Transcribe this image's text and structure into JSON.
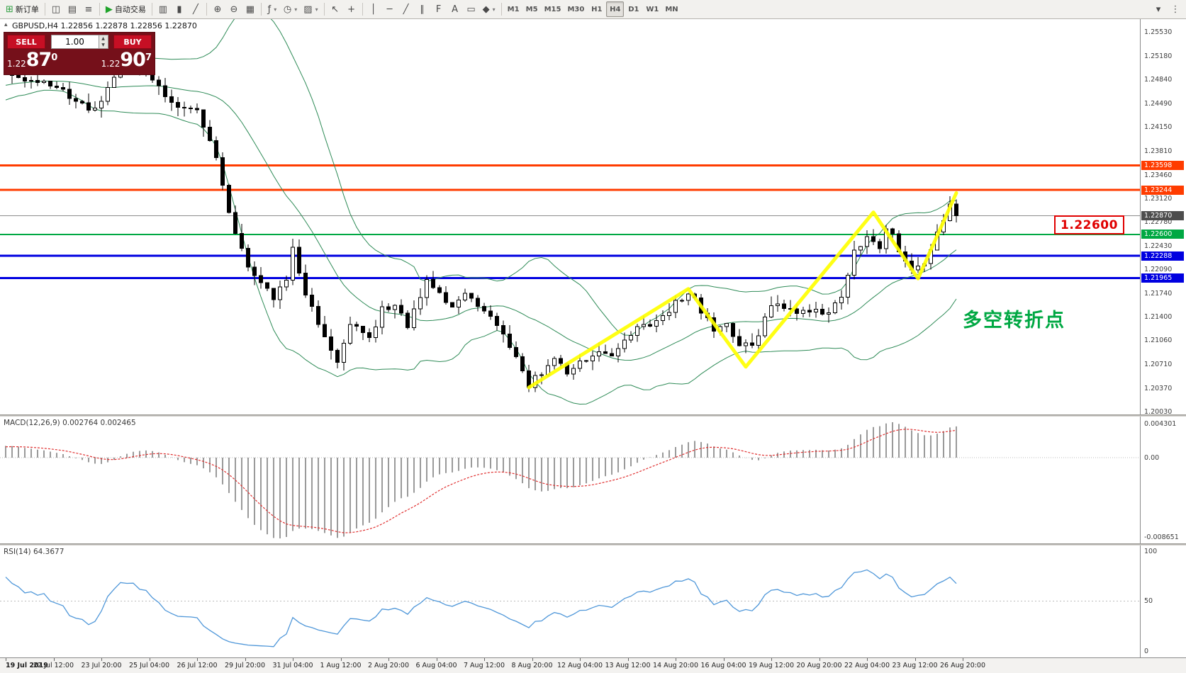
{
  "colors": {
    "line_orange": "#ff3c00",
    "line_green": "#00a843",
    "line_blue": "#0000e0",
    "current_price_line": "#8c8c8c",
    "current_price_bg": "#4d4d4d",
    "bollinger": "#2e8b57",
    "candle_up": "#ffffff",
    "candle_down": "#000000",
    "zigzag_yellow": "#ffff00",
    "macd_hist": "#9a9a9a",
    "macd_signal": "#e03030",
    "rsi_line": "#4f97d9",
    "annotation_green": "#00a843",
    "callout_red": "#e00000"
  },
  "toolbar": {
    "groups": [
      {
        "items": [
          {
            "name": "new-order-button",
            "glyph": "⊞",
            "glyph_color": "#2f9e41",
            "label": "新订单"
          }
        ]
      },
      {
        "items": [
          {
            "name": "charts-button",
            "glyph": "◫"
          },
          {
            "name": "profiles-button",
            "glyph": "▤"
          },
          {
            "name": "market-watch-button",
            "glyph": "≡"
          }
        ]
      },
      {
        "items": [
          {
            "name": "autotrading-button",
            "glyph": "▶",
            "glyph_color": "#1fa32a",
            "label": "自动交易"
          }
        ]
      },
      {
        "items": [
          {
            "name": "bar-chart-button",
            "glyph": "▥"
          },
          {
            "name": "candlestick-chart-button",
            "glyph": "▮"
          },
          {
            "name": "line-chart-button",
            "glyph": "╱"
          }
        ]
      },
      {
        "items": [
          {
            "name": "zoom-in-button",
            "glyph": "⊕"
          },
          {
            "name": "zoom-out-button",
            "glyph": "⊖"
          },
          {
            "name": "grid-button",
            "glyph": "▦"
          }
        ]
      },
      {
        "items": [
          {
            "name": "indicators-button",
            "glyph": "ƒ",
            "dropdown": true
          },
          {
            "name": "periods-button",
            "glyph": "◷",
            "dropdown": true
          },
          {
            "name": "templates-button",
            "glyph": "▨",
            "dropdown": true
          }
        ]
      },
      {
        "items": [
          {
            "name": "cursor-button",
            "glyph": "↖"
          },
          {
            "name": "crosshair-button",
            "glyph": "+"
          }
        ]
      },
      {
        "items": [
          {
            "name": "vertical-line-button",
            "glyph": "│"
          },
          {
            "name": "horizontal-line-button",
            "glyph": "─"
          },
          {
            "name": "trendline-button",
            "glyph": "╱"
          },
          {
            "name": "channel-button",
            "glyph": "∥"
          },
          {
            "name": "fibonacci-button",
            "glyph": "F"
          },
          {
            "name": "text-button",
            "glyph": "A"
          },
          {
            "name": "arrow-label-button",
            "glyph": "▭"
          },
          {
            "name": "shapes-button",
            "glyph": "◆",
            "dropdown": true
          }
        ]
      }
    ],
    "timeframes": [
      "M1",
      "M5",
      "M15",
      "M30",
      "H1",
      "H4",
      "D1",
      "W1",
      "MN"
    ],
    "active_timeframe": "H4",
    "right_items": [
      {
        "name": "chart-list-button",
        "glyph": "▾"
      },
      {
        "name": "toolbar-overflow-handle",
        "glyph": "⋮"
      }
    ]
  },
  "chart": {
    "symbol_info": "GBPUSD,H4  1.22856 1.22878 1.22856 1.22870",
    "trade_panel": {
      "sell_label": "SELL",
      "buy_label": "BUY",
      "volume": "1.00",
      "sell_price_small": "1.22",
      "sell_price_big": "87",
      "sell_price_sup": "0",
      "buy_price_small": "1.22",
      "buy_price_big": "90",
      "buy_price_sup": "7"
    },
    "callout_price": "1.22600",
    "annotation_text": "多空转折点",
    "current_price_label": "1.22870"
  },
  "price_scale": {
    "ticks": [
      "1.25530",
      "1.25180",
      "1.24840",
      "1.24490",
      "1.24150",
      "1.23810",
      "1.23460",
      "1.23120",
      "1.22780",
      "1.22430",
      "1.22090",
      "1.21740",
      "1.21400",
      "1.21060",
      "1.20710",
      "1.20370",
      "1.20030"
    ],
    "marks": [
      {
        "text": "1.23598",
        "price": 1.23598,
        "bg": "#ff3c00"
      },
      {
        "text": "1.23244",
        "price": 1.23244,
        "bg": "#ff3c00"
      },
      {
        "text": "1.22870",
        "price": 1.2287,
        "bg": "#4d4d4d"
      },
      {
        "text": "1.22600",
        "price": 1.226,
        "bg": "#00a843"
      },
      {
        "text": "1.22288",
        "price": 1.22288,
        "bg": "#0000e0"
      },
      {
        "text": "1.21965",
        "price": 1.21965,
        "bg": "#0000e0"
      }
    ]
  },
  "macd_panel": {
    "label": "MACD(12,26,9) 0.002764 0.002465",
    "scale_labels": [
      "0.004301",
      "0.00",
      "-0.008651"
    ]
  },
  "rsi_panel": {
    "label": "RSI(14) 64.3677",
    "scale_labels": [
      "100",
      "50",
      "0"
    ]
  },
  "time_axis": [
    "19 Jul 2019",
    "22 Jul 12:00",
    "23 Jul 20:00",
    "25 Jul 04:00",
    "26 Jul 12:00",
    "29 Jul 20:00",
    "31 Jul 04:00",
    "1 Aug 12:00",
    "2 Aug 20:00",
    "6 Aug 04:00",
    "7 Aug 12:00",
    "8 Aug 20:00",
    "12 Aug 04:00",
    "13 Aug 12:00",
    "14 Aug 20:00",
    "16 Aug 04:00",
    "19 Aug 12:00",
    "20 Aug 20:00",
    "22 Aug 04:00",
    "23 Aug 12:00",
    "26 Aug 20:00"
  ],
  "chart_data": {
    "type": "candlestick",
    "symbol": "GBPUSD",
    "timeframe": "H4",
    "ohlc_current": {
      "open": 1.22856,
      "high": 1.22878,
      "low": 1.22856,
      "close": 1.2287
    },
    "bid": 1.2287,
    "ask": 1.229,
    "visible_price_range": [
      1.1998,
      1.2572
    ],
    "num_candles": 150,
    "last_close": 1.2287,
    "close_waypoints": [
      [
        0,
        1.2495
      ],
      [
        8,
        1.2472
      ],
      [
        14,
        1.244
      ],
      [
        18,
        1.2505
      ],
      [
        22,
        1.2495
      ],
      [
        26,
        1.245
      ],
      [
        30,
        1.2435
      ],
      [
        33,
        1.237
      ],
      [
        35,
        1.229
      ],
      [
        38,
        1.221
      ],
      [
        42,
        1.217
      ],
      [
        44,
        1.2195
      ],
      [
        45,
        1.2245
      ],
      [
        47,
        1.217
      ],
      [
        50,
        1.2115
      ],
      [
        52,
        1.2075
      ],
      [
        54,
        1.213
      ],
      [
        57,
        1.211
      ],
      [
        59,
        1.215
      ],
      [
        61,
        1.216
      ],
      [
        63,
        1.213
      ],
      [
        65,
        1.2168
      ],
      [
        66,
        1.2192
      ],
      [
        68,
        1.2172
      ],
      [
        70,
        1.2155
      ],
      [
        72,
        1.2172
      ],
      [
        74,
        1.216
      ],
      [
        76,
        1.2138
      ],
      [
        78,
        1.2118
      ],
      [
        80,
        1.2078
      ],
      [
        82,
        1.2042
      ],
      [
        84,
        1.2062
      ],
      [
        86,
        1.208
      ],
      [
        88,
        1.2058
      ],
      [
        90,
        1.2072
      ],
      [
        93,
        1.2088
      ],
      [
        95,
        1.2082
      ],
      [
        97,
        1.2102
      ],
      [
        99,
        1.2122
      ],
      [
        101,
        1.2132
      ],
      [
        104,
        1.2152
      ],
      [
        107,
        1.2177
      ],
      [
        109,
        1.215
      ],
      [
        111,
        1.2122
      ],
      [
        113,
        1.2132
      ],
      [
        115,
        1.2102
      ],
      [
        117,
        1.2094
      ],
      [
        119,
        1.2142
      ],
      [
        121,
        1.2162
      ],
      [
        123,
        1.215
      ],
      [
        126,
        1.2152
      ],
      [
        129,
        1.2148
      ],
      [
        131,
        1.2165
      ],
      [
        133,
        1.2235
      ],
      [
        135,
        1.2255
      ],
      [
        137,
        1.224
      ],
      [
        138,
        1.2272
      ],
      [
        140,
        1.224
      ],
      [
        142,
        1.2205
      ],
      [
        144,
        1.2215
      ],
      [
        146,
        1.2262
      ],
      [
        148,
        1.2302
      ],
      [
        149,
        1.2287
      ]
    ],
    "hlines": [
      {
        "price": 1.23598,
        "color": "#ff3c00",
        "width": 3
      },
      {
        "price": 1.23244,
        "color": "#ff3c00",
        "width": 3
      },
      {
        "price": 1.2287,
        "color": "#8c8c8c",
        "width": 1
      },
      {
        "price": 1.226,
        "color": "#00a843",
        "width": 2
      },
      {
        "price": 1.22288,
        "color": "#0000e0",
        "width": 3
      },
      {
        "price": 1.21965,
        "color": "#0000e0",
        "width": 3
      }
    ],
    "zigzag": [
      [
        82,
        1.2038
      ],
      [
        107,
        1.2181
      ],
      [
        116,
        1.2068
      ],
      [
        136,
        1.2292
      ],
      [
        143,
        1.2196
      ],
      [
        149,
        1.232
      ]
    ],
    "indicators": {
      "bollinger": {
        "period": 20,
        "deviation": 2
      },
      "macd": {
        "fast": 12,
        "slow": 26,
        "signal": 9,
        "current": [
          0.002764,
          0.002465
        ]
      },
      "rsi": {
        "period": 14,
        "current": 64.3677
      }
    }
  }
}
